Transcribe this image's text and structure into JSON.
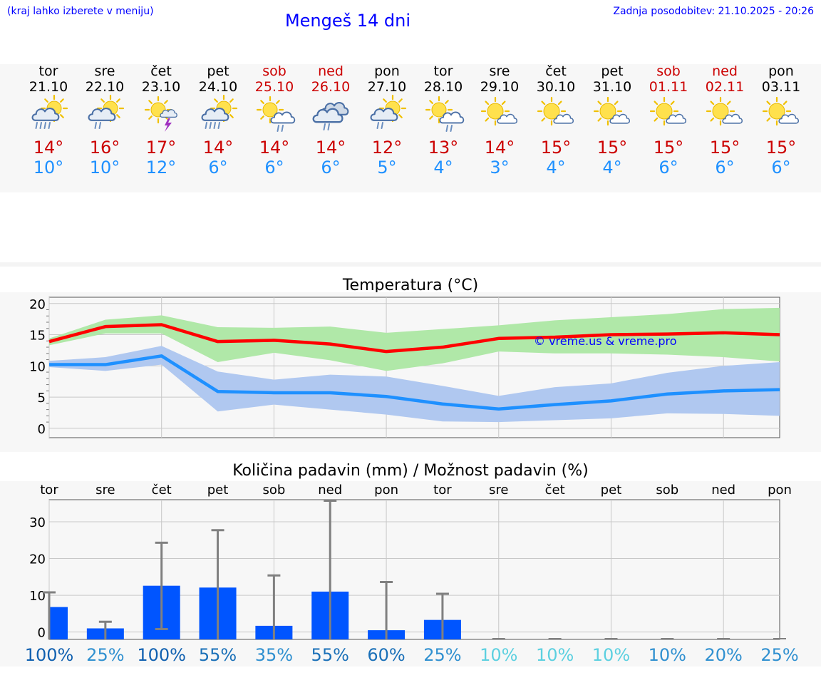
{
  "header": {
    "region_hint": "(kraj lahko izberete v meniju)",
    "title": "Mengeš 14 dni",
    "last_update": "Zadnja posodobitev: 21.10.2025 - 20:26"
  },
  "days": [
    {
      "name": "tor",
      "date": "21.10",
      "weekend": false,
      "icon": "partly-cloudy-rain-icon",
      "tmax": "14°",
      "tmin": "10°"
    },
    {
      "name": "sre",
      "date": "22.10",
      "weekend": false,
      "icon": "partly-cloudy-light-rain-icon",
      "tmax": "16°",
      "tmin": "10°"
    },
    {
      "name": "čet",
      "date": "23.10",
      "weekend": false,
      "icon": "sun-thunderstorm-icon",
      "tmax": "17°",
      "tmin": "12°"
    },
    {
      "name": "pet",
      "date": "24.10",
      "weekend": false,
      "icon": "partly-cloudy-rain-icon",
      "tmax": "14°",
      "tmin": "6°"
    },
    {
      "name": "sob",
      "date": "25.10",
      "weekend": true,
      "icon": "sun-cloud-light-rain-icon",
      "tmax": "14°",
      "tmin": "6°"
    },
    {
      "name": "ned",
      "date": "26.10",
      "weekend": true,
      "icon": "cloudy-light-rain-icon",
      "tmax": "14°",
      "tmin": "6°"
    },
    {
      "name": "pon",
      "date": "27.10",
      "weekend": false,
      "icon": "partly-cloudy-light-rain-icon",
      "tmax": "12°",
      "tmin": "5°"
    },
    {
      "name": "tor",
      "date": "28.10",
      "weekend": false,
      "icon": "sun-cloud-light-rain-icon",
      "tmax": "13°",
      "tmin": "4°"
    },
    {
      "name": "sre",
      "date": "29.10",
      "weekend": false,
      "icon": "sun-small-cloud-icon",
      "tmax": "14°",
      "tmin": "3°"
    },
    {
      "name": "čet",
      "date": "30.10",
      "weekend": false,
      "icon": "sun-small-cloud-icon",
      "tmax": "15°",
      "tmin": "4°"
    },
    {
      "name": "pet",
      "date": "31.10",
      "weekend": false,
      "icon": "sun-small-cloud-icon",
      "tmax": "15°",
      "tmin": "4°"
    },
    {
      "name": "sob",
      "date": "01.11",
      "weekend": true,
      "icon": "sun-small-cloud-icon",
      "tmax": "15°",
      "tmin": "6°"
    },
    {
      "name": "ned",
      "date": "02.11",
      "weekend": true,
      "icon": "sun-small-cloud-icon",
      "tmax": "15°",
      "tmin": "6°"
    },
    {
      "name": "pon",
      "date": "03.11",
      "weekend": false,
      "icon": "sun-small-cloud-icon",
      "tmax": "15°",
      "tmin": "6°"
    }
  ],
  "chart_data": [
    {
      "type": "line",
      "title": "Temperatura (°C)",
      "watermark": "© vreme.us & vreme.pro",
      "ylim": [
        -1.5,
        21
      ],
      "yticks": [
        0,
        5,
        10,
        15,
        20
      ],
      "x": [
        0,
        1,
        2,
        3,
        4,
        5,
        6,
        7,
        8,
        9,
        10,
        11,
        12,
        13
      ],
      "series": [
        {
          "name": "max",
          "color": "#ff0000",
          "values": [
            13.9,
            16.3,
            16.6,
            13.9,
            14.1,
            13.5,
            12.3,
            13.0,
            14.4,
            14.6,
            15.0,
            15.1,
            15.3,
            15.0
          ]
        },
        {
          "name": "min",
          "color": "#1e90ff",
          "values": [
            10.2,
            10.2,
            11.6,
            5.9,
            5.7,
            5.7,
            5.1,
            3.9,
            3.1,
            3.8,
            4.4,
            5.5,
            6.0,
            6.2
          ]
        }
      ],
      "bands": [
        {
          "name": "max-range",
          "color": "#b0e8a8",
          "lower": [
            13.3,
            15.2,
            15.2,
            10.6,
            12.1,
            10.9,
            9.2,
            10.4,
            12.3,
            12.0,
            12.0,
            11.8,
            11.4,
            10.7
          ],
          "upper": [
            14.4,
            17.4,
            18.1,
            16.2,
            16.1,
            16.3,
            15.3,
            15.9,
            16.5,
            17.3,
            17.8,
            18.3,
            19.1,
            19.3
          ]
        },
        {
          "name": "min-range",
          "color": "#b0c8f0",
          "lower": [
            9.8,
            9.2,
            10.2,
            2.7,
            3.8,
            3.0,
            2.2,
            1.1,
            1.0,
            1.3,
            1.6,
            2.4,
            2.3,
            2.0
          ],
          "upper": [
            10.8,
            11.4,
            13.2,
            9.1,
            7.8,
            8.6,
            8.3,
            6.8,
            5.2,
            6.6,
            7.2,
            8.9,
            10.0,
            10.6
          ]
        }
      ]
    },
    {
      "type": "bar",
      "title": "Količina padavin (mm) / Možnost padavin (%)",
      "ylim": [
        -2,
        36
      ],
      "yticks": [
        0,
        10,
        20,
        30
      ],
      "categories": [
        "tor",
        "sre",
        "čet",
        "pet",
        "sob",
        "ned",
        "pon",
        "tor",
        "sre",
        "čet",
        "pet",
        "sob",
        "ned",
        "pon"
      ],
      "values": [
        6.8,
        1.0,
        12.6,
        12.1,
        1.7,
        11.0,
        0.5,
        3.3,
        0,
        0,
        0,
        0,
        0,
        0
      ],
      "error_low": [
        0,
        0,
        0.8,
        0,
        0,
        0,
        0,
        0,
        0,
        0,
        0,
        0,
        0,
        0
      ],
      "error_high": [
        10.8,
        2.8,
        24.3,
        27.7,
        15.4,
        35.7,
        13.6,
        10.4,
        0,
        0,
        0,
        0,
        0,
        0
      ],
      "probability": [
        "100%",
        "25%",
        "100%",
        "55%",
        "35%",
        "55%",
        "60%",
        "25%",
        "10%",
        "10%",
        "10%",
        "10%",
        "20%",
        "25%"
      ],
      "probability_colors": [
        "#1060b0",
        "#3090d0",
        "#1060b0",
        "#1a70b8",
        "#3090d0",
        "#1a70b8",
        "#1a70b8",
        "#3090d0",
        "#5cd0e0",
        "#5cd0e0",
        "#5cd0e0",
        "#3090d0",
        "#3090d0",
        "#3090d0"
      ],
      "bar_color": "#0055ff",
      "error_color": "#808080"
    }
  ]
}
